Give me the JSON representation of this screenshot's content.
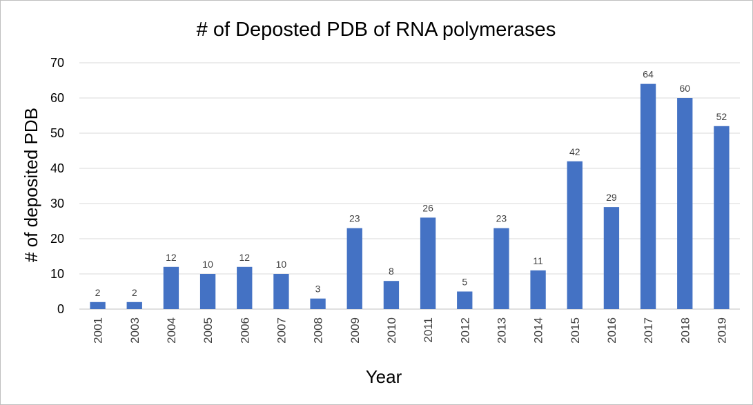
{
  "chart_data": {
    "type": "bar",
    "title": "# of Deposted PDB of RNA polymerases",
    "xlabel": "Year",
    "ylabel": "# of deposited PDB",
    "categories": [
      "2001",
      "2003",
      "2004",
      "2005",
      "2006",
      "2007",
      "2008",
      "2009",
      "2010",
      "2011",
      "2012",
      "2013",
      "2014",
      "2015",
      "2016",
      "2017",
      "2018",
      "2019"
    ],
    "values": [
      2,
      2,
      12,
      10,
      12,
      10,
      3,
      23,
      8,
      26,
      5,
      23,
      11,
      42,
      29,
      64,
      60,
      52
    ],
    "ylim": [
      0,
      70
    ],
    "yticks": [
      0,
      10,
      20,
      30,
      40,
      50,
      60,
      70
    ],
    "grid": true,
    "bar_color": "#4472c4",
    "data_labels": true
  }
}
